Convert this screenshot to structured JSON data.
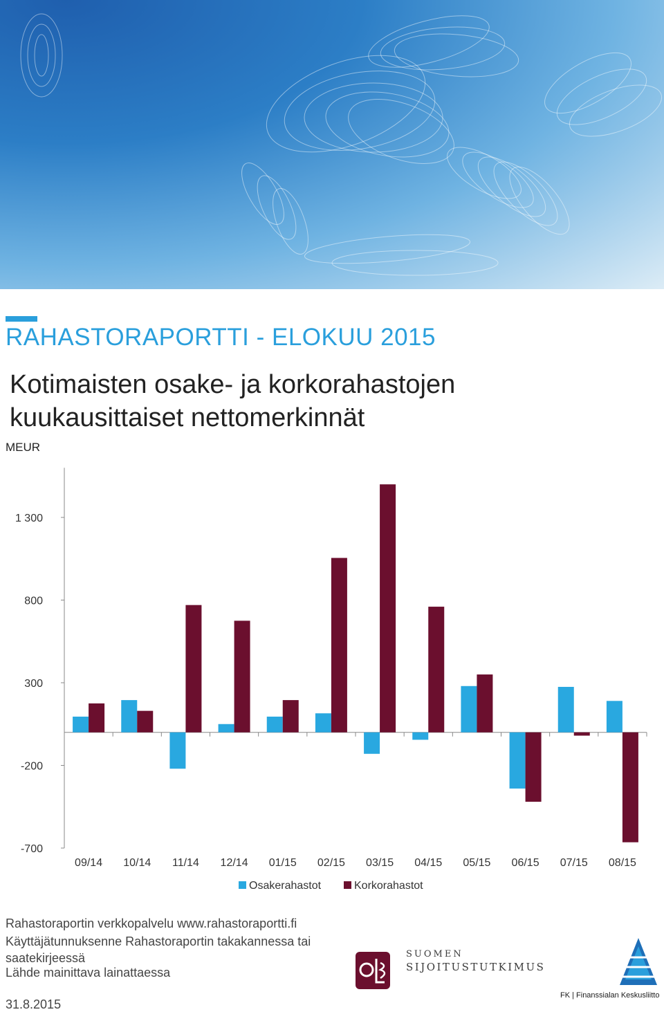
{
  "report_title": "RAHASTORAPORTTI - ELOKUU 2015",
  "subtitle_lines": [
    "Kotimaisten osake- ja korkorahastojen",
    "kuukausittaiset nettomerkinnät"
  ],
  "unit": "MEUR",
  "colors": {
    "osakerahastot": "#29a8e0",
    "korkorahastot": "#6b0f2e",
    "title_blue": "#2a9fdc"
  },
  "chart_data": {
    "type": "bar",
    "categories": [
      "09/14",
      "10/14",
      "11/14",
      "12/14",
      "01/15",
      "02/15",
      "03/15",
      "04/15",
      "05/15",
      "06/15",
      "07/15",
      "08/15"
    ],
    "series": [
      {
        "name": "Osakerahastot",
        "values": [
          95,
          195,
          -220,
          50,
          95,
          115,
          -130,
          -45,
          280,
          -340,
          275,
          190
        ]
      },
      {
        "name": "Korkorahastot",
        "values": [
          175,
          130,
          770,
          675,
          195,
          1055,
          1500,
          760,
          350,
          -420,
          -20,
          -665
        ]
      }
    ],
    "yticks": [
      "1 300",
      "800",
      "300",
      "-200",
      "-700"
    ],
    "ytick_values": [
      1300,
      800,
      300,
      -200,
      -700
    ],
    "ylim": [
      -700,
      1600
    ],
    "grid": false,
    "legend_position": "bottom"
  },
  "footer": {
    "line1": "Rahastoraportin verkkopalvelu www.rahastoraportti.fi",
    "line2": "Käyttäjätunnuksenne Rahastoraportin takakannessa tai",
    "line3": "saatekirjeessä",
    "line4": "Lähde mainittava lainattaessa",
    "date": "31.8.2015"
  },
  "logos": {
    "ss_line1": "SUOMEN",
    "ss_line2": "SIJOITUSTUTKIMUS",
    "fk_text": "FK | Finanssialan Keskusliitto"
  }
}
